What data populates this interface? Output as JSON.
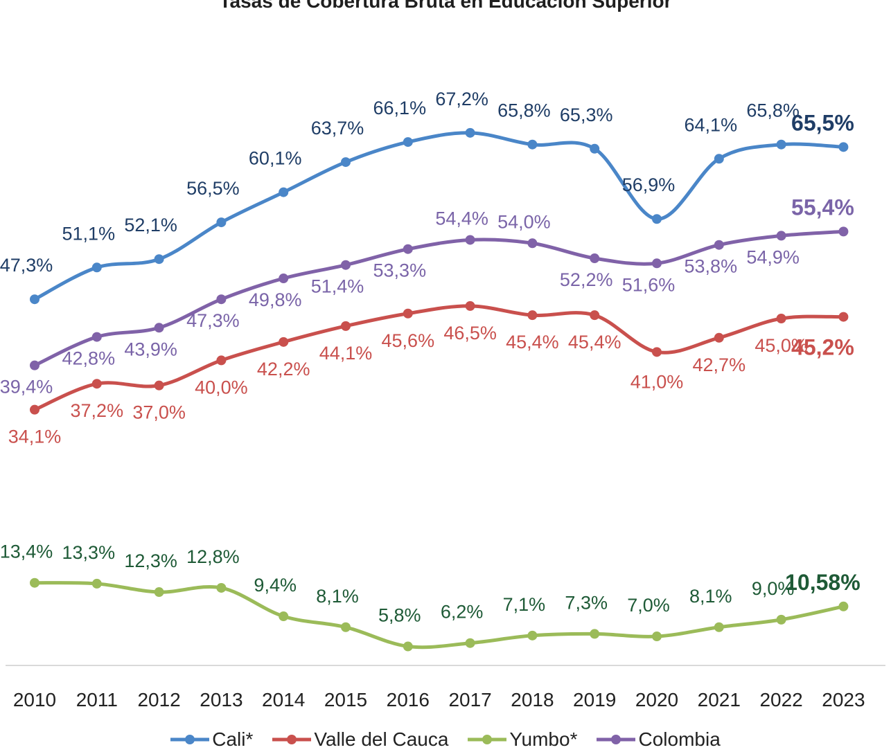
{
  "chart_data": {
    "type": "line",
    "title": "Tasas de Cobertura Bruta en Educación Superior",
    "categories": [
      "2010",
      "2011",
      "2012",
      "2013",
      "2014",
      "2015",
      "2016",
      "2017",
      "2018",
      "2019",
      "2020",
      "2021",
      "2022",
      "2023"
    ],
    "series": [
      {
        "name": "Cali*",
        "color": "#4a86c8",
        "label_color": "#1f3d66",
        "values": [
          47.3,
          51.1,
          52.1,
          56.5,
          60.1,
          63.7,
          66.1,
          67.2,
          65.8,
          65.3,
          56.9,
          64.1,
          65.8,
          65.5
        ],
        "labels": [
          "47,3%",
          "51,1%",
          "52,1%",
          "56,5%",
          "60,1%",
          "63,7%",
          "66,1%",
          "67,2%",
          "65,8%",
          "65,3%",
          "56,9%",
          "64,1%",
          "65,8%",
          "65,5%"
        ]
      },
      {
        "name": "Valle del Cauca",
        "color": "#c9504d",
        "label_color": "#c9504d",
        "values": [
          34.1,
          37.2,
          37.0,
          40.0,
          42.2,
          44.1,
          45.6,
          46.5,
          45.4,
          45.4,
          41.0,
          42.7,
          45.0,
          45.2
        ],
        "labels": [
          "34,1%",
          "37,2%",
          "37,0%",
          "40,0%",
          "42,2%",
          "44,1%",
          "45,6%",
          "46,5%",
          "45,4%",
          "45,4%",
          "41,0%",
          "42,7%",
          "45,0%",
          "45,2%"
        ]
      },
      {
        "name": "Yumbo*",
        "color": "#9bbb59",
        "label_color": "#1e5a36",
        "values": [
          13.4,
          13.3,
          12.3,
          12.8,
          9.4,
          8.1,
          5.8,
          6.2,
          7.1,
          7.3,
          7.0,
          8.1,
          9.0,
          10.58
        ],
        "labels": [
          "13,4%",
          "13,3%",
          "12,3%",
          "12,8%",
          "9,4%",
          "8,1%",
          "5,8%",
          "6,2%",
          "7,1%",
          "7,3%",
          "7,0%",
          "8,1%",
          "9,0%",
          "10,58%"
        ]
      },
      {
        "name": "Colombia",
        "color": "#8062a8",
        "label_color": "#7a64a8",
        "values": [
          39.4,
          42.8,
          43.9,
          47.3,
          49.8,
          51.4,
          53.3,
          54.4,
          54.0,
          52.2,
          51.6,
          53.8,
          54.9,
          55.4
        ],
        "labels": [
          "39,4%",
          "42,8%",
          "43,9%",
          "47,3%",
          "49,8%",
          "51,4%",
          "53,3%",
          "54,4%",
          "54,0%",
          "52,2%",
          "51,6%",
          "53,8%",
          "54,9%",
          "55,4%"
        ]
      }
    ],
    "legend_position": "bottom",
    "grid": false
  }
}
